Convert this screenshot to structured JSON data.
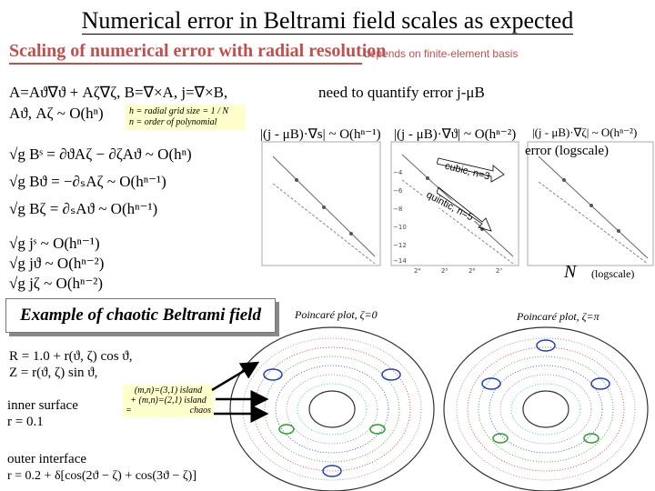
{
  "slide": {
    "title": "Numerical error in Beltrami field scales as expected",
    "subtitle": "Scaling of numerical error with radial resolution",
    "basis_note": "depends on finite-element basis"
  },
  "equations": {
    "definitions": "A=Aϑ∇ϑ + Aζ∇ζ,   B=∇×A,   j=∇×B,",
    "need": "need to quantify error j-μB",
    "order_line": "Aϑ, Aζ ~ O(hⁿ)",
    "b_components": [
      "√g Bˢ = ∂ϑAζ − ∂ζAϑ ~ O(hⁿ)",
      "√g Bϑ = −∂ₛAζ ~ O(hⁿ⁻¹)",
      "√g Bζ = ∂ₛAϑ ~ O(hⁿ⁻¹)"
    ],
    "j_components": [
      "√g jˢ ~ O(hⁿ⁻¹)",
      "√g jϑ ~ O(hⁿ⁻²)",
      "√g jζ ~ O(hⁿ⁻²)"
    ]
  },
  "definition_box": {
    "line1": "h = radial grid size = 1 / N",
    "line2": "n = order of polynomial"
  },
  "plots": {
    "panel1_label": "|(j - μB)·∇s| ~ O(hⁿ⁻¹)",
    "panel2_label": "|(j - μB)·∇ϑ| ~ O(hⁿ⁻²)",
    "panel3_label": "|(j - μB)·∇ζ| ~ O(hⁿ⁻²)",
    "yaxis_label": "error (logscale)",
    "xaxis_label": "N",
    "xaxis_suffix": "(logscale)",
    "curve_cubic": "cubic, n=3",
    "curve_quintic": "quintic, n=5",
    "ytick_labels": [
      "−4",
      "−6",
      "−8",
      "−10",
      "−12",
      "−14"
    ],
    "xtick_labels": [
      "2⁴",
      "2⁵",
      "2⁶",
      "2⁷"
    ]
  },
  "chaotic": {
    "title": "Example of chaotic Beltrami field",
    "r_eq": "R = 1.0 + r(ϑ, ζ) cos ϑ,",
    "z_eq": "Z =           r(ϑ, ζ) sin ϑ,",
    "inner_label": "inner surface",
    "inner_eq": "r = 0.1",
    "outer_label": "outer interface",
    "outer_eq": "r = 0.2  + δ[cos(2ϑ − ζ) + cos(3ϑ − ζ)]"
  },
  "islands": {
    "line1": "(m,n)=(3,1) island",
    "line2": "+ (m,n)=(2,1) island",
    "line3_left": "=",
    "line3_right": "chaos"
  },
  "poincare": {
    "left_label": "Poincaré plot, ζ=0",
    "right_label": "Poincaré plot, ζ=π"
  },
  "colors": {
    "accent": "#c0504d",
    "note_box": "#ffffcc",
    "trajectory_dots": [
      "#d62728",
      "#2ca02c",
      "#1f3fbf",
      "#9467bd",
      "#e377c2",
      "#17becf"
    ]
  }
}
